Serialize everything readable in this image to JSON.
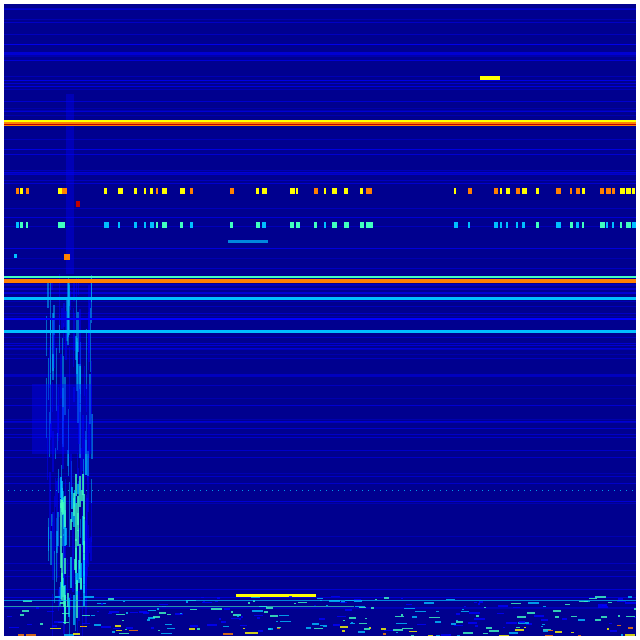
{
  "colormap": {
    "name": "jet",
    "background": "#00008f",
    "low": "#0000ff",
    "mid_low": "#00bfff",
    "mid": "#40ffbf",
    "mid_high": "#ffff00",
    "high": "#ff8000",
    "max": "#c00000"
  }
}
